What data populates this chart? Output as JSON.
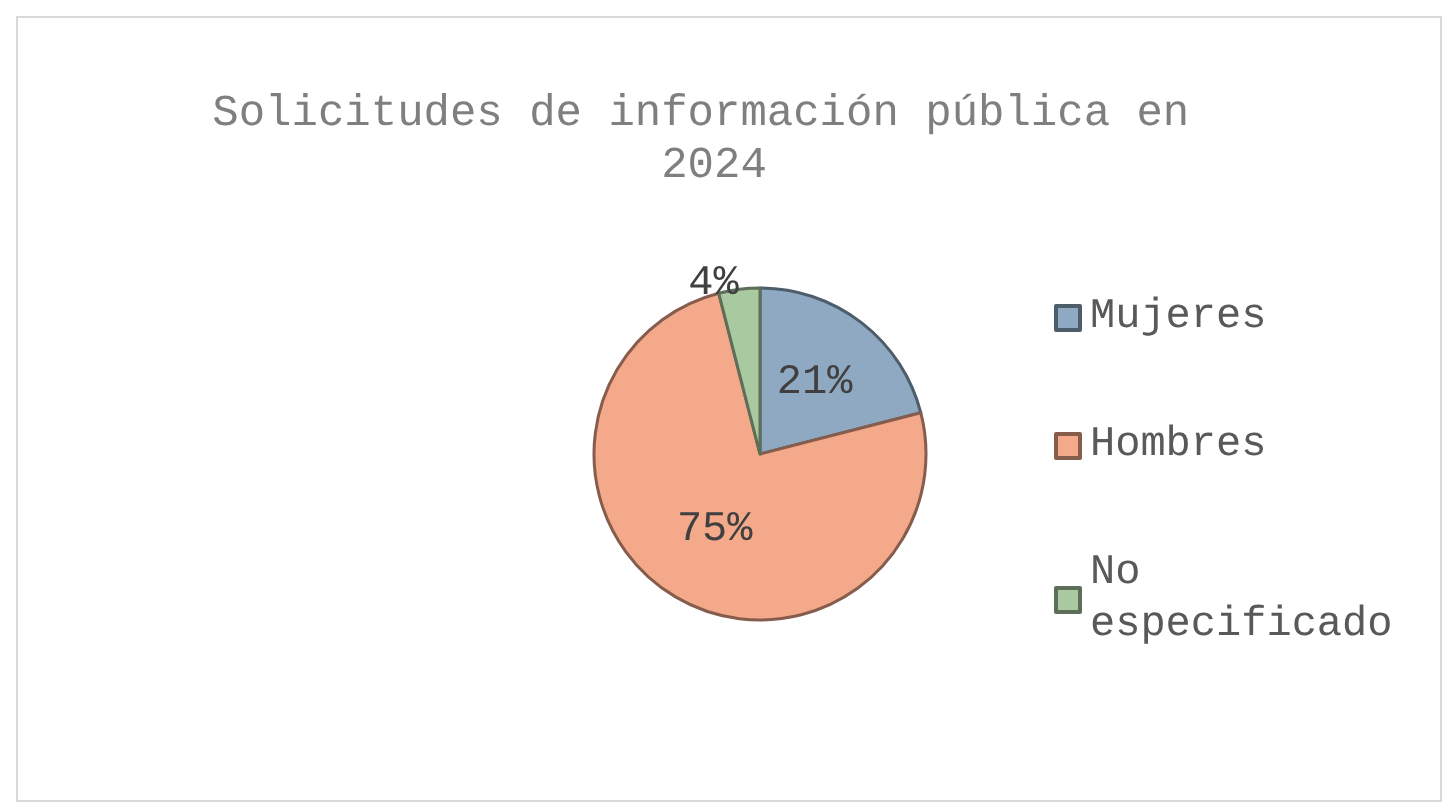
{
  "chart_data": {
    "type": "pie",
    "title": "Solicitudes de información pública en 2024",
    "categories": [
      "Mujeres",
      "Hombres",
      "No especificado"
    ],
    "values": [
      21,
      75,
      4
    ],
    "colors": [
      "#8ea9c1",
      "#f4a98a",
      "#a9c9a0"
    ],
    "value_labels": [
      "21%",
      "75%",
      "4%"
    ],
    "legend": "right"
  }
}
